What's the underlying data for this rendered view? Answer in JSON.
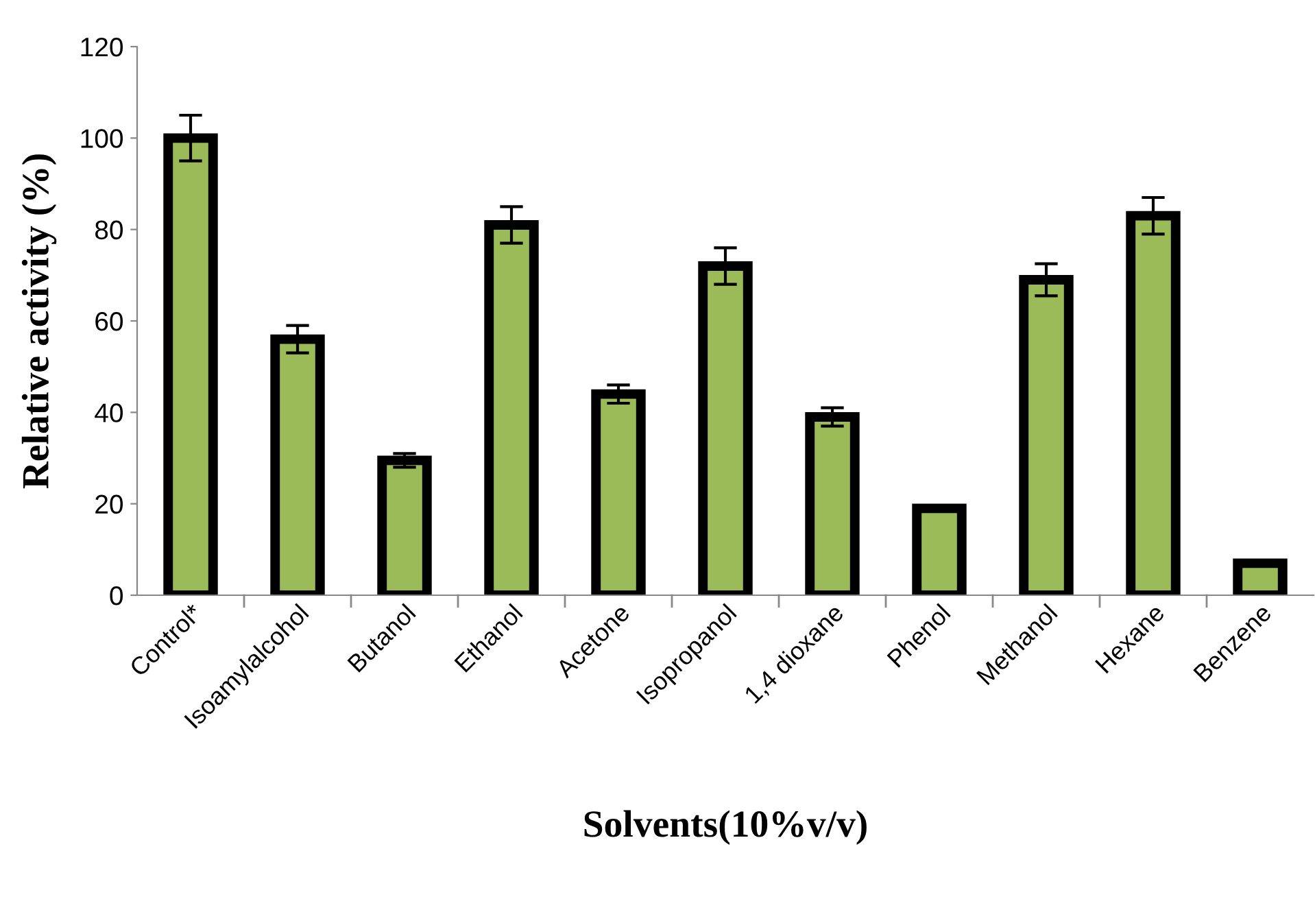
{
  "chart_data": {
    "type": "bar",
    "categories": [
      "Control*",
      "Isoamylalcohol",
      "Butanol",
      "Ethanol",
      "Acetone",
      "Isopropanol",
      "1,4 dioxane",
      "Phenol",
      "Methanol",
      "Hexane",
      "Benzene"
    ],
    "values": [
      100,
      56,
      29.5,
      81,
      44,
      72,
      39,
      19,
      69,
      83,
      7
    ],
    "errors": [
      5,
      3,
      1.5,
      4,
      2,
      4,
      2,
      0.5,
      3.5,
      4,
      null
    ],
    "color": "#9bbb59",
    "xlabel": "Solvents(10%v/v)",
    "ylabel": "Relative activity (%)",
    "ylim": [
      0,
      120
    ],
    "yticks": [
      0,
      20,
      40,
      60,
      80,
      100,
      120
    ],
    "grid": false,
    "legend": false
  }
}
